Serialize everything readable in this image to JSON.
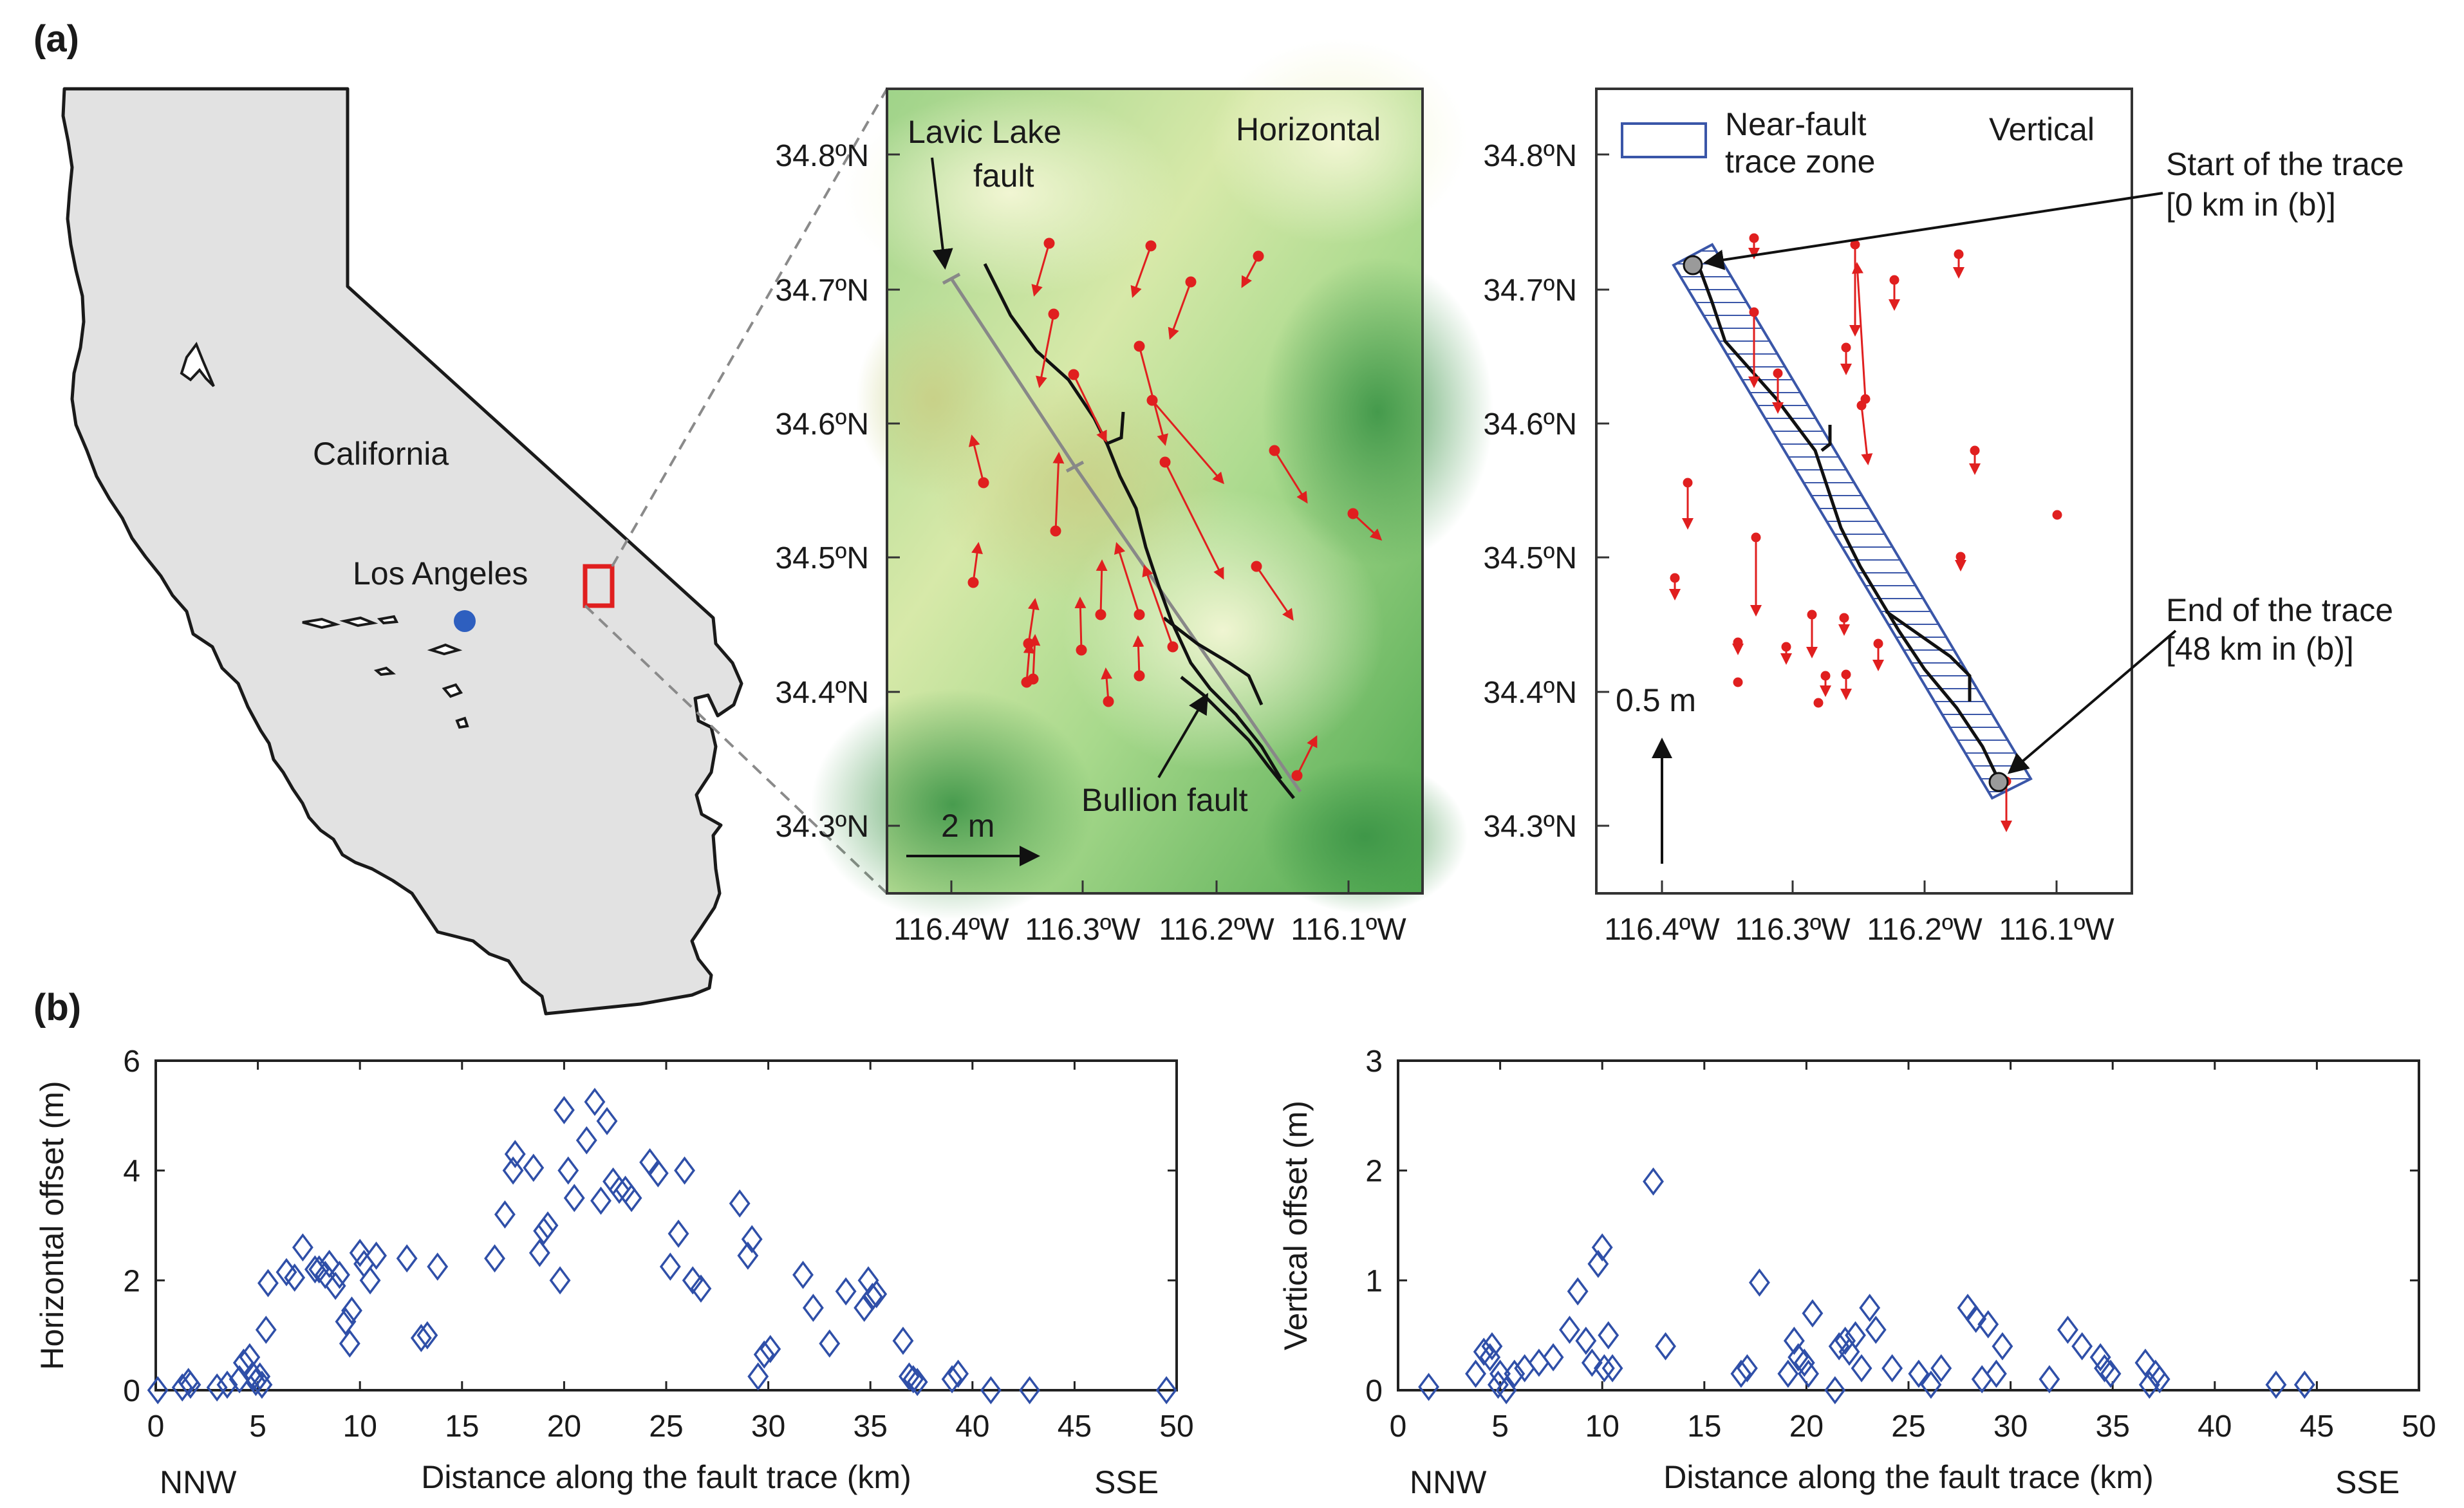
{
  "panel_a": {
    "label": "(a)",
    "california_label": "California",
    "los_angeles_label": "Los Angeles",
    "horizontal_map": {
      "title": "Horizontal",
      "lat_ticks": [
        "34.8ºN",
        "34.7ºN",
        "34.6ºN",
        "34.5ºN",
        "34.4ºN",
        "34.3ºN"
      ],
      "lon_ticks": [
        "116.4ºW",
        "116.3ºW",
        "116.2ºW",
        "116.1ºW"
      ],
      "lavic_line1": "Lavic Lake",
      "lavic_line2": "fault",
      "bullion_label": "Bullion fault",
      "scale_label": "2 m"
    },
    "vertical_map": {
      "title": "Vertical",
      "legend_line1": "Near-fault",
      "legend_line2": "trace zone",
      "lat_ticks": [
        "34.8ºN",
        "34.7ºN",
        "34.6ºN",
        "34.5ºN",
        "34.4ºN",
        "34.3ºN"
      ],
      "lon_ticks": [
        "116.4ºW",
        "116.3ºW",
        "116.2ºW",
        "116.1ºW"
      ],
      "start_line1": "Start of the trace",
      "start_line2": "[0 km in (b)]",
      "end_line1": "End of the trace",
      "end_line2": "[48 km in (b)]",
      "scale_label": "0.5 m"
    }
  },
  "panel_b": {
    "label": "(b)",
    "nnw": "NNW",
    "sse": "SSE"
  },
  "colors": {
    "marker": "#2f4fa8",
    "arrow": "#e01f1f",
    "box": "#e01f1f",
    "la_dot": "#2e5fbf",
    "state_fill": "#e2e2e2"
  },
  "chart_data": [
    {
      "type": "scatter",
      "title": "",
      "xlabel": "Distance along the fault trace (km)",
      "ylabel": "Horizontal offset (m)",
      "xlim": [
        0,
        50
      ],
      "ylim": [
        0,
        6
      ],
      "xticks": [
        0,
        5,
        10,
        15,
        20,
        25,
        30,
        35,
        40,
        45,
        50
      ],
      "yticks": [
        0,
        2,
        4,
        6
      ],
      "marker": "open-diamond",
      "x": [
        0.1,
        1.3,
        1.6,
        1.7,
        3.0,
        3.5,
        4.1,
        4.3,
        4.6,
        4.8,
        4.9,
        5.1,
        5.2,
        5.4,
        5.5,
        6.4,
        6.8,
        7.2,
        7.8,
        8.0,
        8.3,
        8.5,
        8.8,
        9.0,
        9.3,
        9.5,
        9.6,
        10.0,
        10.2,
        10.5,
        10.8,
        12.3,
        13.0,
        13.3,
        13.8,
        16.6,
        17.1,
        17.5,
        17.6,
        18.5,
        18.8,
        19.0,
        19.2,
        19.8,
        20.0,
        20.2,
        20.5,
        21.1,
        21.5,
        21.8,
        22.1,
        22.4,
        22.7,
        23.0,
        23.3,
        24.2,
        24.6,
        25.2,
        25.6,
        25.9,
        26.3,
        26.7,
        28.6,
        29.0,
        29.2,
        29.5,
        29.8,
        30.1,
        31.7,
        32.2,
        33.0,
        33.8,
        34.7,
        34.9,
        35.1,
        35.3,
        36.6,
        36.9,
        37.1,
        37.3,
        39.0,
        39.3,
        40.9,
        42.8,
        49.5
      ],
      "y": [
        0.0,
        0.05,
        0.15,
        0.1,
        0.05,
        0.1,
        0.2,
        0.5,
        0.6,
        0.25,
        0.15,
        0.25,
        0.1,
        1.1,
        1.95,
        2.15,
        2.05,
        2.6,
        2.2,
        2.2,
        2.1,
        2.3,
        1.9,
        2.1,
        1.25,
        0.85,
        1.45,
        2.5,
        2.3,
        2.0,
        2.45,
        2.4,
        0.95,
        1.0,
        2.25,
        2.4,
        3.2,
        4.0,
        4.3,
        4.05,
        2.5,
        2.9,
        3.0,
        2.0,
        5.1,
        4.0,
        3.5,
        4.55,
        5.25,
        3.45,
        4.9,
        3.8,
        3.65,
        3.65,
        3.5,
        4.15,
        3.95,
        2.25,
        2.85,
        4.0,
        2.0,
        1.85,
        3.4,
        2.45,
        2.75,
        0.25,
        0.65,
        0.75,
        2.1,
        1.5,
        0.85,
        1.8,
        1.5,
        2.0,
        1.7,
        1.75,
        0.9,
        0.25,
        0.2,
        0.15,
        0.2,
        0.3,
        0.0,
        0.0,
        0.0
      ]
    },
    {
      "type": "scatter",
      "title": "",
      "xlabel": "Distance along the fault trace (km)",
      "ylabel": "Vertical offset (m)",
      "xlim": [
        0,
        50
      ],
      "ylim": [
        0,
        3
      ],
      "xticks": [
        0,
        5,
        10,
        15,
        20,
        25,
        30,
        35,
        40,
        45,
        50
      ],
      "yticks": [
        0,
        1,
        2,
        3
      ],
      "marker": "open-diamond",
      "x": [
        1.5,
        3.8,
        4.2,
        4.5,
        4.6,
        4.9,
        5.0,
        5.3,
        5.7,
        6.2,
        6.9,
        7.6,
        8.4,
        8.8,
        9.2,
        9.5,
        9.8,
        10.0,
        10.1,
        10.3,
        10.5,
        12.5,
        13.1,
        16.8,
        17.1,
        17.7,
        19.1,
        19.4,
        19.6,
        19.9,
        20.1,
        20.3,
        21.4,
        21.6,
        21.9,
        22.1,
        22.4,
        22.7,
        23.1,
        23.4,
        24.2,
        25.5,
        26.1,
        26.6,
        27.9,
        28.3,
        28.6,
        28.9,
        29.3,
        29.6,
        31.9,
        32.8,
        33.5,
        34.4,
        34.6,
        34.9,
        36.6,
        36.8,
        37.1,
        37.3,
        43.0,
        44.4
      ],
      "y": [
        0.03,
        0.15,
        0.35,
        0.3,
        0.4,
        0.05,
        0.15,
        0.0,
        0.15,
        0.2,
        0.25,
        0.3,
        0.55,
        0.9,
        0.45,
        0.25,
        1.15,
        1.3,
        0.2,
        0.5,
        0.2,
        1.9,
        0.4,
        0.15,
        0.2,
        0.98,
        0.15,
        0.45,
        0.3,
        0.25,
        0.15,
        0.7,
        0.0,
        0.4,
        0.45,
        0.35,
        0.5,
        0.2,
        0.75,
        0.55,
        0.2,
        0.15,
        0.05,
        0.2,
        0.75,
        0.65,
        0.1,
        0.6,
        0.15,
        0.4,
        0.1,
        0.55,
        0.4,
        0.3,
        0.2,
        0.15,
        0.25,
        0.05,
        0.15,
        0.1,
        0.05,
        0.05
      ]
    }
  ]
}
